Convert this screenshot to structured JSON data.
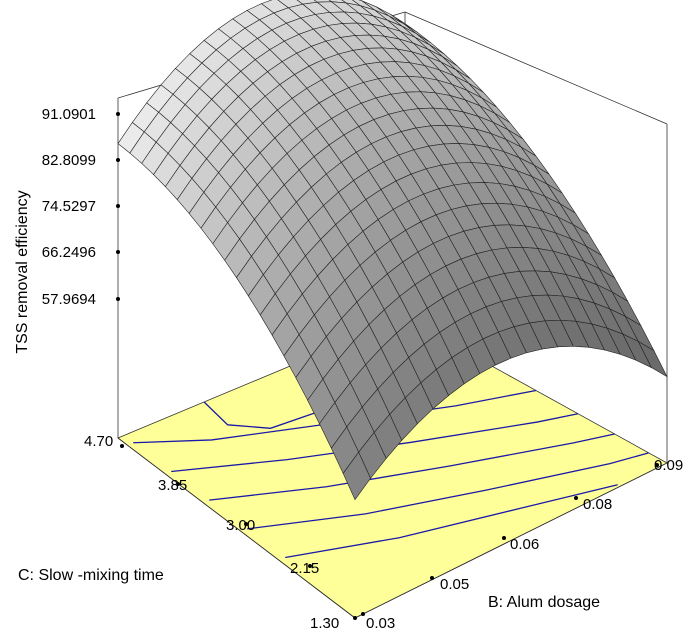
{
  "chart_data": {
    "type": "surface3d",
    "z_axis": {
      "label": "TSS removal efficiency",
      "ticks": [
        "57.9694",
        "66.2496",
        "74.5297",
        "82.8099",
        "91.0901"
      ]
    },
    "c_axis": {
      "label": "C: Slow -mixing time",
      "ticks": [
        "1.30",
        "2.15",
        "3.00",
        "3.85",
        "4.70"
      ],
      "range": [
        1.3,
        4.7
      ]
    },
    "b_axis": {
      "label": "B: Alum dosage",
      "ticks": [
        "0.03",
        "0.05",
        "0.06",
        "0.08",
        "0.09"
      ],
      "range": [
        0.03,
        0.09
      ]
    },
    "floor_color": "#ffff99",
    "surface_color": "#d4d4d4",
    "contour_color": "#1a1aa8"
  }
}
